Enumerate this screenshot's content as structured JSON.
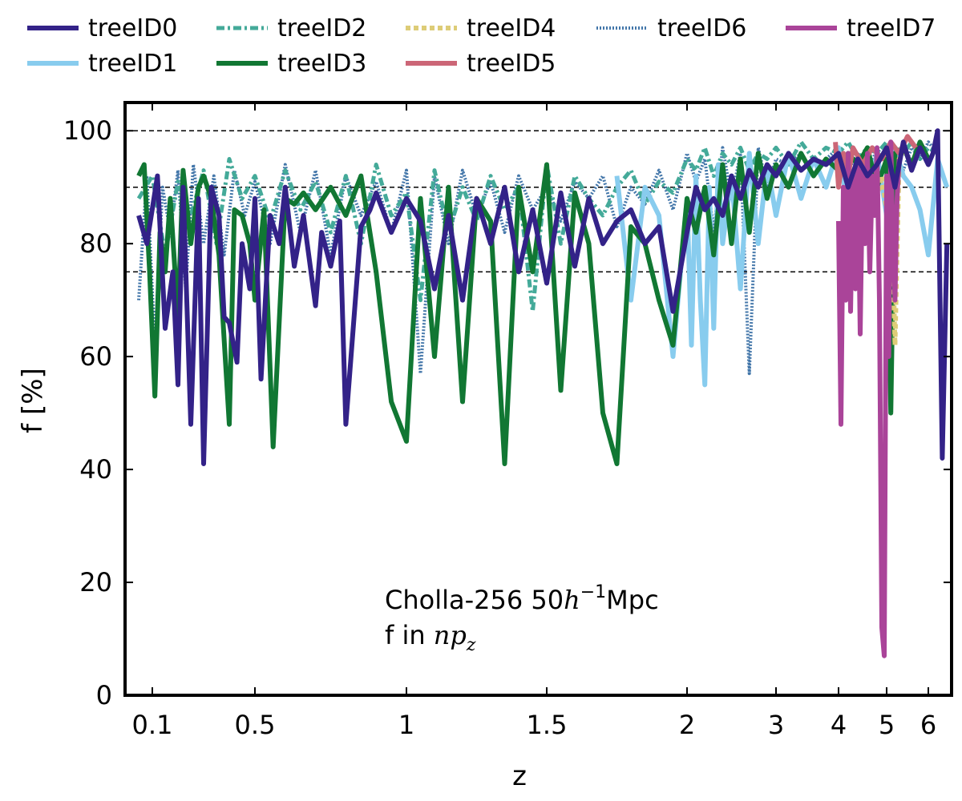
{
  "chart_data": {
    "type": "line",
    "title": "",
    "xlabel": "z",
    "ylabel": "f [%]",
    "annotation": {
      "line1_prefix": "Cholla-256 50",
      "line1_math": "h",
      "line1_sup": "−1",
      "line1_suffix": "Mpc",
      "line2_prefix": "f in ",
      "line2_math": "np",
      "line2_sub": "z"
    },
    "x_axis": {
      "scale": "piecewise",
      "tick_labels": [
        "0.1",
        "0.5",
        "1",
        "1.5",
        "2",
        "3",
        "4",
        "5",
        "6"
      ],
      "tick_values": [
        0.1,
        0.5,
        1.0,
        1.5,
        2.0,
        3.0,
        4.0,
        5.0,
        6.0
      ],
      "range": [
        0.0,
        6.5
      ]
    },
    "y_axis": {
      "tick_labels": [
        "0",
        "20",
        "40",
        "60",
        "80",
        "100"
      ],
      "tick_values": [
        0,
        20,
        40,
        60,
        80,
        100
      ],
      "range": [
        0,
        105
      ]
    },
    "reference_lines": [
      100,
      90,
      75
    ],
    "legend_position": "top (outside, above plot)",
    "series": [
      {
        "name": "treeID0",
        "color": "#332288",
        "style": "solid",
        "x": [
          0.05,
          0.08,
          0.12,
          0.15,
          0.18,
          0.2,
          0.22,
          0.25,
          0.28,
          0.3,
          0.33,
          0.36,
          0.38,
          0.4,
          0.43,
          0.45,
          0.48,
          0.5,
          0.52,
          0.55,
          0.58,
          0.6,
          0.63,
          0.66,
          0.7,
          0.72,
          0.75,
          0.78,
          0.8,
          0.85,
          0.88,
          0.9,
          0.95,
          1.0,
          1.05,
          1.1,
          1.15,
          1.2,
          1.25,
          1.3,
          1.35,
          1.4,
          1.45,
          1.5,
          1.55,
          1.6,
          1.65,
          1.7,
          1.75,
          1.8,
          1.85,
          1.9,
          1.95,
          2.0,
          2.1,
          2.2,
          2.3,
          2.4,
          2.5,
          2.6,
          2.7,
          2.8,
          2.9,
          3.0,
          3.2,
          3.4,
          3.6,
          3.8,
          4.0,
          4.2,
          4.4,
          4.6,
          4.8,
          5.0,
          5.2,
          5.4,
          5.6,
          5.8,
          6.0,
          6.1,
          6.2,
          6.3,
          6.4
        ],
        "y": [
          85,
          80,
          92,
          65,
          75,
          55,
          90,
          48,
          88,
          41,
          90,
          85,
          67,
          66,
          59,
          80,
          72,
          88,
          56,
          85,
          80,
          90,
          76,
          85,
          69,
          82,
          76,
          84,
          48,
          83,
          86,
          89,
          82,
          88,
          84,
          72,
          85,
          70,
          88,
          80,
          90,
          75,
          86,
          73,
          89,
          76,
          88,
          80,
          84,
          86,
          80,
          83,
          68,
          82,
          90,
          86,
          88,
          85,
          92,
          88,
          93,
          90,
          94,
          92,
          96,
          93,
          95,
          94,
          96,
          90,
          95,
          92,
          94,
          97,
          90,
          98,
          93,
          97,
          94,
          96,
          100,
          42,
          80
        ]
      },
      {
        "name": "treeID1",
        "color": "#88ccee",
        "style": "solid",
        "x": [
          1.75,
          1.8,
          1.85,
          1.9,
          1.95,
          2.0,
          2.05,
          2.1,
          2.15,
          2.2,
          2.25,
          2.3,
          2.35,
          2.4,
          2.5,
          2.6,
          2.7,
          2.8,
          2.9,
          3.0,
          3.2,
          3.4,
          3.6,
          3.8,
          4.0,
          4.2,
          4.4,
          4.6,
          4.8,
          5.0,
          5.2,
          5.4,
          5.6,
          5.8,
          6.0,
          6.2,
          6.4
        ],
        "y": [
          92,
          70,
          90,
          85,
          60,
          88,
          62,
          92,
          70,
          55,
          90,
          65,
          94,
          80,
          92,
          72,
          96,
          80,
          94,
          85,
          96,
          88,
          95,
          90,
          97,
          86,
          95,
          88,
          96,
          85,
          97,
          92,
          90,
          86,
          78,
          95,
          90
        ]
      },
      {
        "name": "treeID2",
        "color": "#44aa99",
        "style": "dash-dot",
        "x": [
          0.05,
          0.1,
          0.15,
          0.2,
          0.25,
          0.3,
          0.35,
          0.4,
          0.45,
          0.5,
          0.55,
          0.6,
          0.65,
          0.7,
          0.75,
          0.8,
          0.85,
          0.9,
          0.95,
          1.0,
          1.05,
          1.1,
          1.15,
          1.2,
          1.25,
          1.3,
          1.35,
          1.4,
          1.45,
          1.5,
          1.55,
          1.6,
          1.65,
          1.7,
          1.75,
          1.8,
          1.85,
          1.9,
          1.95,
          2.0,
          2.1,
          2.2,
          2.3,
          2.4,
          2.5,
          2.6,
          2.7,
          2.8,
          2.9,
          3.0,
          3.2,
          3.4,
          3.6,
          3.8,
          4.0,
          4.2,
          4.4,
          4.6,
          4.8,
          5.0,
          5.2,
          5.4,
          5.6,
          5.8,
          6.0,
          6.2
        ],
        "y": [
          88,
          92,
          78,
          91,
          85,
          93,
          80,
          95,
          88,
          92,
          84,
          93,
          86,
          91,
          82,
          92,
          80,
          94,
          85,
          89,
          70,
          93,
          82,
          90,
          84,
          92,
          86,
          90,
          68,
          94,
          80,
          92,
          88,
          85,
          90,
          93,
          87,
          91,
          89,
          95,
          93,
          97,
          92,
          96,
          94,
          97,
          93,
          96,
          95,
          97,
          94,
          98,
          95,
          97,
          96,
          98,
          95,
          97,
          96,
          98,
          97,
          96,
          98,
          95,
          97,
          96
        ]
      },
      {
        "name": "treeID3",
        "color": "#117733",
        "style": "solid",
        "x": [
          0.05,
          0.07,
          0.09,
          0.11,
          0.13,
          0.15,
          0.17,
          0.2,
          0.22,
          0.25,
          0.28,
          0.3,
          0.33,
          0.36,
          0.4,
          0.42,
          0.45,
          0.48,
          0.5,
          0.53,
          0.56,
          0.6,
          0.63,
          0.66,
          0.7,
          0.75,
          0.8,
          0.85,
          0.9,
          0.95,
          1.0,
          1.05,
          1.1,
          1.15,
          1.2,
          1.25,
          1.3,
          1.35,
          1.4,
          1.45,
          1.5,
          1.55,
          1.6,
          1.65,
          1.7,
          1.75,
          1.8,
          1.85,
          1.9,
          1.95,
          2.0,
          2.1,
          2.2,
          2.3,
          2.4,
          2.5,
          2.6,
          2.7,
          2.8,
          2.9,
          3.0,
          3.2,
          3.4,
          3.6,
          3.8,
          4.0,
          4.2,
          4.4,
          4.6,
          4.8,
          5.0,
          5.1,
          5.2,
          5.4,
          5.6,
          5.8,
          6.0
        ],
        "y": [
          92,
          94,
          75,
          53,
          82,
          75,
          88,
          67,
          93,
          80,
          90,
          92,
          88,
          78,
          48,
          86,
          85,
          80,
          70,
          86,
          44,
          88,
          87,
          89,
          86,
          90,
          85,
          92,
          75,
          52,
          45,
          88,
          60,
          90,
          52,
          88,
          84,
          41,
          90,
          75,
          94,
          54,
          89,
          80,
          50,
          41,
          83,
          80,
          70,
          62,
          88,
          82,
          90,
          78,
          94,
          80,
          95,
          82,
          96,
          88,
          94,
          90,
          96,
          92,
          95,
          93,
          96,
          94,
          97,
          90,
          95,
          50,
          96,
          97,
          94,
          98,
          95
        ]
      },
      {
        "name": "treeID4",
        "color": "#ddcc77",
        "style": "dotted",
        "x": [
          4.8,
          4.9,
          5.0,
          5.1,
          5.2,
          5.3,
          5.4
        ],
        "y": [
          88,
          92,
          86,
          93,
          62,
          95,
          96
        ]
      },
      {
        "name": "treeID5",
        "color": "#cc6677",
        "style": "solid",
        "x": [
          3.95,
          4.0,
          4.1,
          4.2,
          4.3,
          4.5,
          4.7,
          4.9,
          5.1,
          5.3,
          5.5,
          5.7
        ],
        "y": [
          98,
          90,
          96,
          92,
          97,
          94,
          97,
          95,
          98,
          96,
          99,
          97
        ]
      },
      {
        "name": "treeID6",
        "color": "#4477aa",
        "style": "dotted-fine",
        "x": [
          0.05,
          0.08,
          0.11,
          0.14,
          0.17,
          0.2,
          0.23,
          0.26,
          0.3,
          0.34,
          0.38,
          0.42,
          0.46,
          0.5,
          0.55,
          0.6,
          0.65,
          0.7,
          0.75,
          0.8,
          0.85,
          0.9,
          0.95,
          1.0,
          1.05,
          1.1,
          1.15,
          1.2,
          1.25,
          1.3,
          1.35,
          1.4,
          1.45,
          1.5,
          1.55,
          1.6,
          1.65,
          1.7,
          1.75,
          1.8,
          1.85,
          1.9,
          1.95,
          2.0,
          2.1,
          2.2,
          2.3,
          2.4,
          2.5,
          2.6,
          2.7,
          2.8,
          2.9,
          3.0,
          3.2,
          3.4,
          3.6,
          3.8,
          4.0,
          4.2,
          4.4,
          4.6,
          4.8,
          5.0,
          5.2,
          5.4,
          5.6,
          5.8,
          6.0,
          6.2
        ],
        "y": [
          70,
          92,
          62,
          90,
          82,
          93,
          72,
          94,
          80,
          92,
          78,
          93,
          85,
          91,
          80,
          94,
          82,
          93,
          78,
          92,
          85,
          91,
          82,
          93,
          57,
          92,
          80,
          93,
          85,
          91,
          82,
          92,
          86,
          90,
          84,
          91,
          88,
          92,
          83,
          90,
          87,
          93,
          86,
          96,
          91,
          95,
          82,
          97,
          88,
          96,
          57,
          97,
          90,
          95,
          94,
          96,
          92,
          95,
          97,
          93,
          96,
          92,
          97,
          94,
          96,
          93,
          97,
          95,
          98,
          96
        ]
      },
      {
        "name": "treeID7",
        "color": "#aa4499",
        "style": "solid",
        "x": [
          4.0,
          4.05,
          4.1,
          4.15,
          4.2,
          4.25,
          4.3,
          4.35,
          4.4,
          4.45,
          4.5,
          4.55,
          4.6,
          4.65,
          4.7,
          4.75,
          4.8,
          4.85,
          4.9,
          4.95,
          5.0,
          5.05,
          5.1,
          5.15,
          5.2,
          5.25,
          5.3
        ],
        "y": [
          84,
          48,
          90,
          70,
          96,
          68,
          92,
          72,
          95,
          64,
          93,
          80,
          96,
          75,
          92,
          85,
          97,
          70,
          12,
          7,
          92,
          60,
          98,
          80,
          70,
          88,
          95
        ]
      }
    ]
  }
}
